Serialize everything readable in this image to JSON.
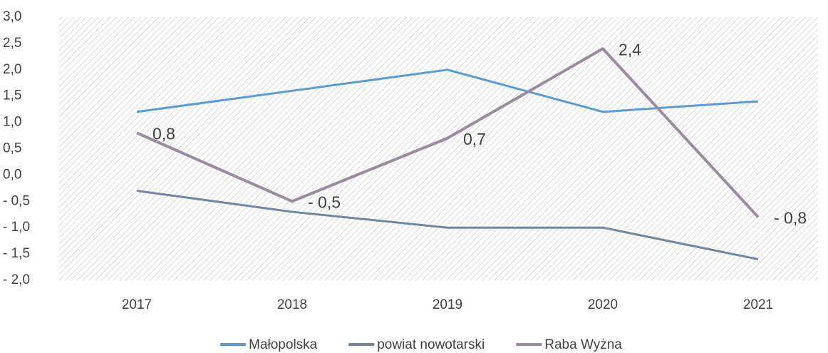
{
  "chart_data": {
    "type": "line",
    "categories": [
      "2017",
      "2018",
      "2019",
      "2020",
      "2021"
    ],
    "series": [
      {
        "name": "Małopolska",
        "color": "#5b9bd5",
        "values": [
          1.2,
          1.6,
          2.0,
          1.2,
          1.4
        ]
      },
      {
        "name": "powiat nowotarski",
        "color": "#7086a6",
        "values": [
          -0.3,
          -0.7,
          -1.0,
          -1.0,
          -1.6
        ]
      },
      {
        "name": "Raba Wyżna",
        "color": "#9b8b9f",
        "values": [
          0.8,
          -0.5,
          0.7,
          2.4,
          -0.8
        ],
        "value_labels": [
          "0,8",
          "- 0,5",
          "0,7",
          "2,4",
          "- 0,8"
        ]
      }
    ],
    "ylim": [
      -2.0,
      3.0
    ],
    "yticks": [
      {
        "value": 3.0,
        "label": "3,0"
      },
      {
        "value": 2.5,
        "label": "2,5"
      },
      {
        "value": 2.0,
        "label": "2,0"
      },
      {
        "value": 1.5,
        "label": "1,5"
      },
      {
        "value": 1.0,
        "label": "1,0"
      },
      {
        "value": 0.5,
        "label": "0,5"
      },
      {
        "value": 0.0,
        "label": "0,0"
      },
      {
        "value": -0.5,
        "label": "- 0,5"
      },
      {
        "value": -1.0,
        "label": "- 1,0"
      },
      {
        "value": -1.5,
        "label": "- 1,5"
      },
      {
        "value": -2.0,
        "label": "- 2,0"
      }
    ],
    "grid": false,
    "legend": "bottom"
  }
}
